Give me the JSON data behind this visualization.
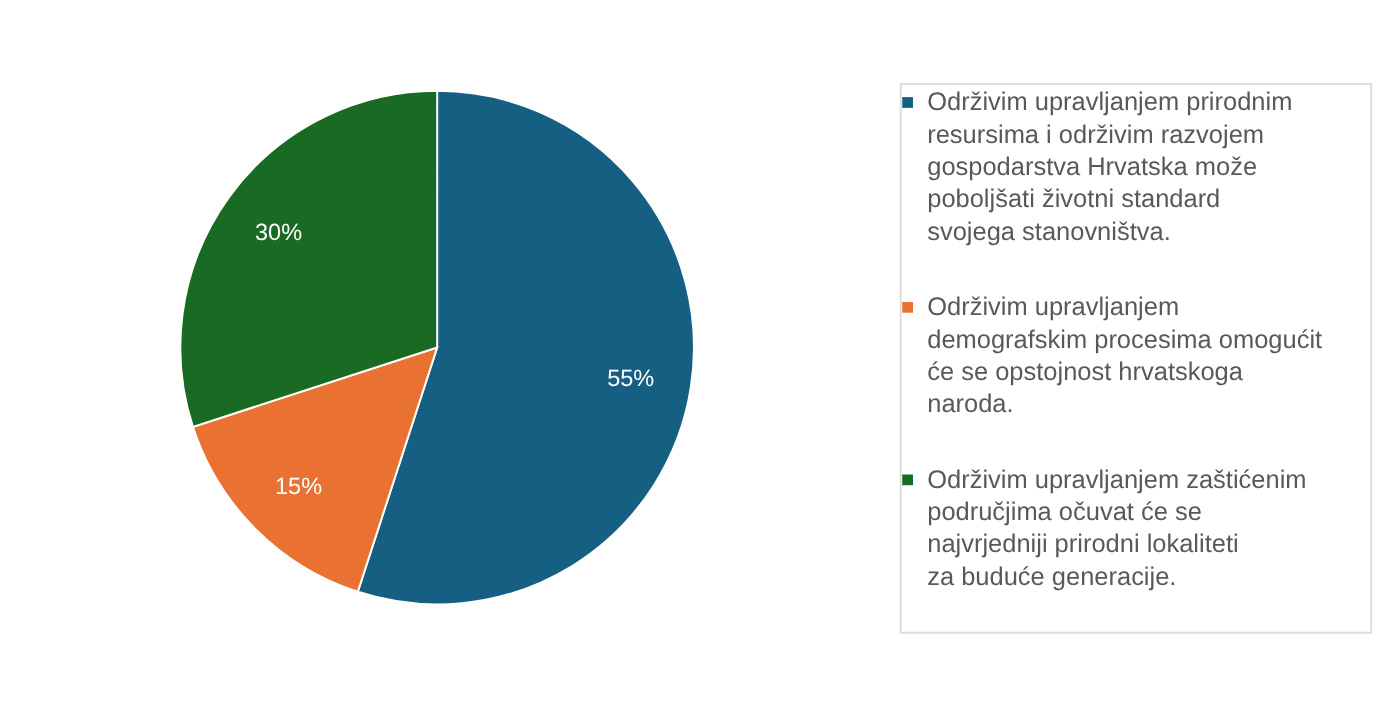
{
  "chart_data": {
    "type": "pie",
    "categories": [
      "Održivim upravljanjem prirodnim resursima i održivim razvojem gospodarstva Hrvatska može poboljšati životni standard svojega stanovništva.",
      "Održivim upravljanjem demografskim procesima omogućit će se opstojnost hrvatskoga naroda.",
      "Održivim upravljanjem zaštićenim područjima očuvat će se najvrjedniji prirodni lokaliteti za buduće generacije."
    ],
    "values": [
      55,
      15,
      30
    ],
    "colors": [
      "#156082",
      "#e97132",
      "#196b24"
    ],
    "value_labels": [
      "55%",
      "15%",
      "30%"
    ],
    "legend": "right"
  }
}
